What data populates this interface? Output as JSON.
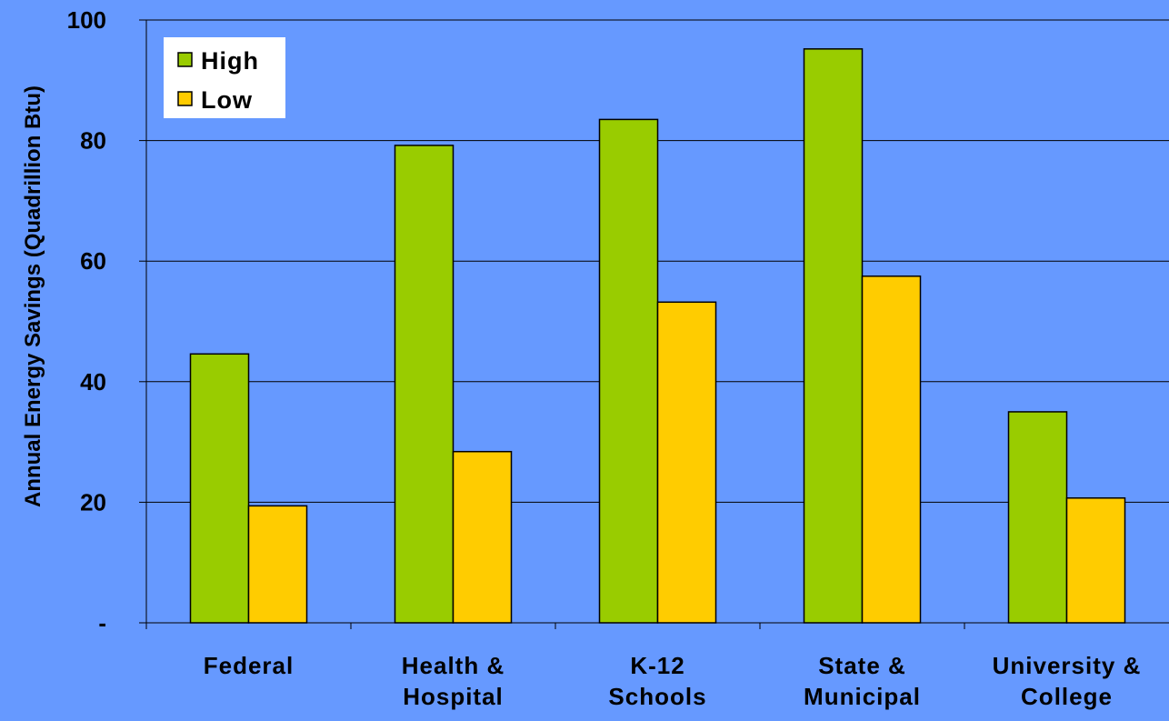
{
  "chart_data": {
    "type": "bar",
    "ylabel": "Annual Energy Savings (Quadrillion Btu)",
    "xlabel": "",
    "ylim": [
      0,
      100
    ],
    "yticks": [
      {
        "value": 0,
        "label": "-"
      },
      {
        "value": 20,
        "label": "20"
      },
      {
        "value": 40,
        "label": "40"
      },
      {
        "value": 60,
        "label": "60"
      },
      {
        "value": 80,
        "label": "80"
      },
      {
        "value": 100,
        "label": "100"
      }
    ],
    "grid": true,
    "legend_position": "top-left",
    "categories": [
      [
        "Federal"
      ],
      [
        "Health &",
        "Hospital"
      ],
      [
        "K-12",
        "Schools"
      ],
      [
        "State &",
        "Municipal"
      ],
      [
        "University &",
        "College"
      ]
    ],
    "series": [
      {
        "name": "High",
        "color": "#99cc00",
        "values": [
          44.6,
          79.2,
          83.5,
          95.2,
          35.0
        ]
      },
      {
        "name": "Low",
        "color": "#ffcc00",
        "values": [
          19.4,
          28.4,
          53.2,
          57.5,
          20.7
        ]
      }
    ],
    "background_color": "#6699ff",
    "gridline_color": "#000000"
  }
}
